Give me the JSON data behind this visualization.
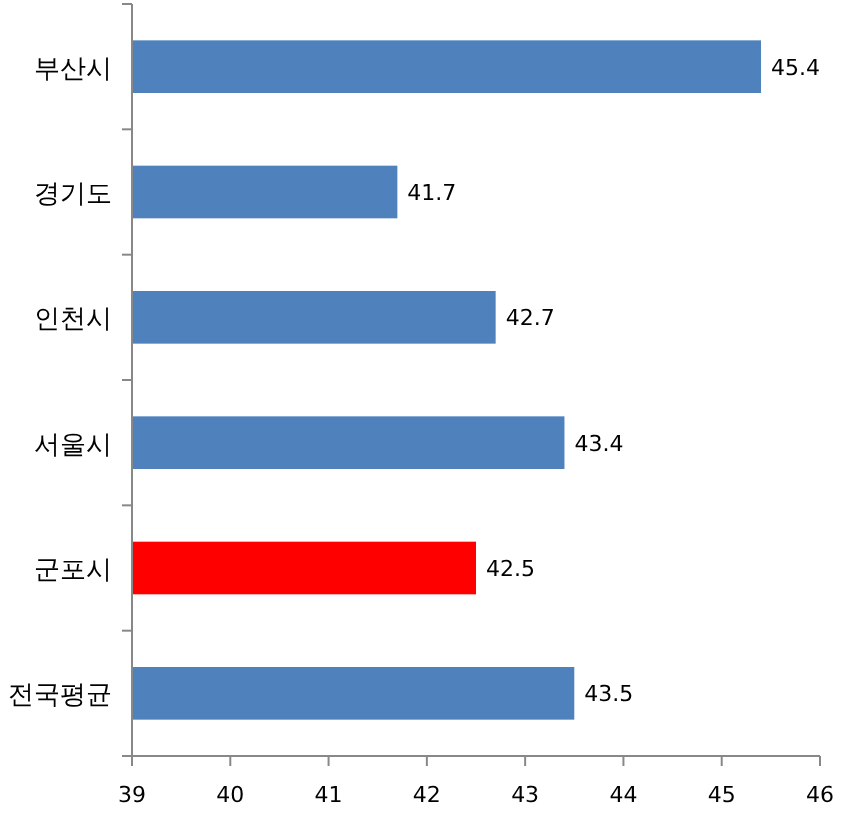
{
  "chart_data": {
    "type": "bar",
    "orientation": "horizontal",
    "categories": [
      "부산시",
      "경기도",
      "인천시",
      "서울시",
      "군포시",
      "전국평균"
    ],
    "values": [
      45.4,
      41.7,
      42.7,
      43.4,
      42.5,
      43.5
    ],
    "colors": [
      "#4f81bd",
      "#4f81bd",
      "#4f81bd",
      "#4f81bd",
      "#ff0000",
      "#4f81bd"
    ],
    "xlim": [
      39,
      46
    ],
    "xticks": [
      39,
      40,
      41,
      42,
      43,
      44,
      45,
      46
    ],
    "data_labels": true
  }
}
